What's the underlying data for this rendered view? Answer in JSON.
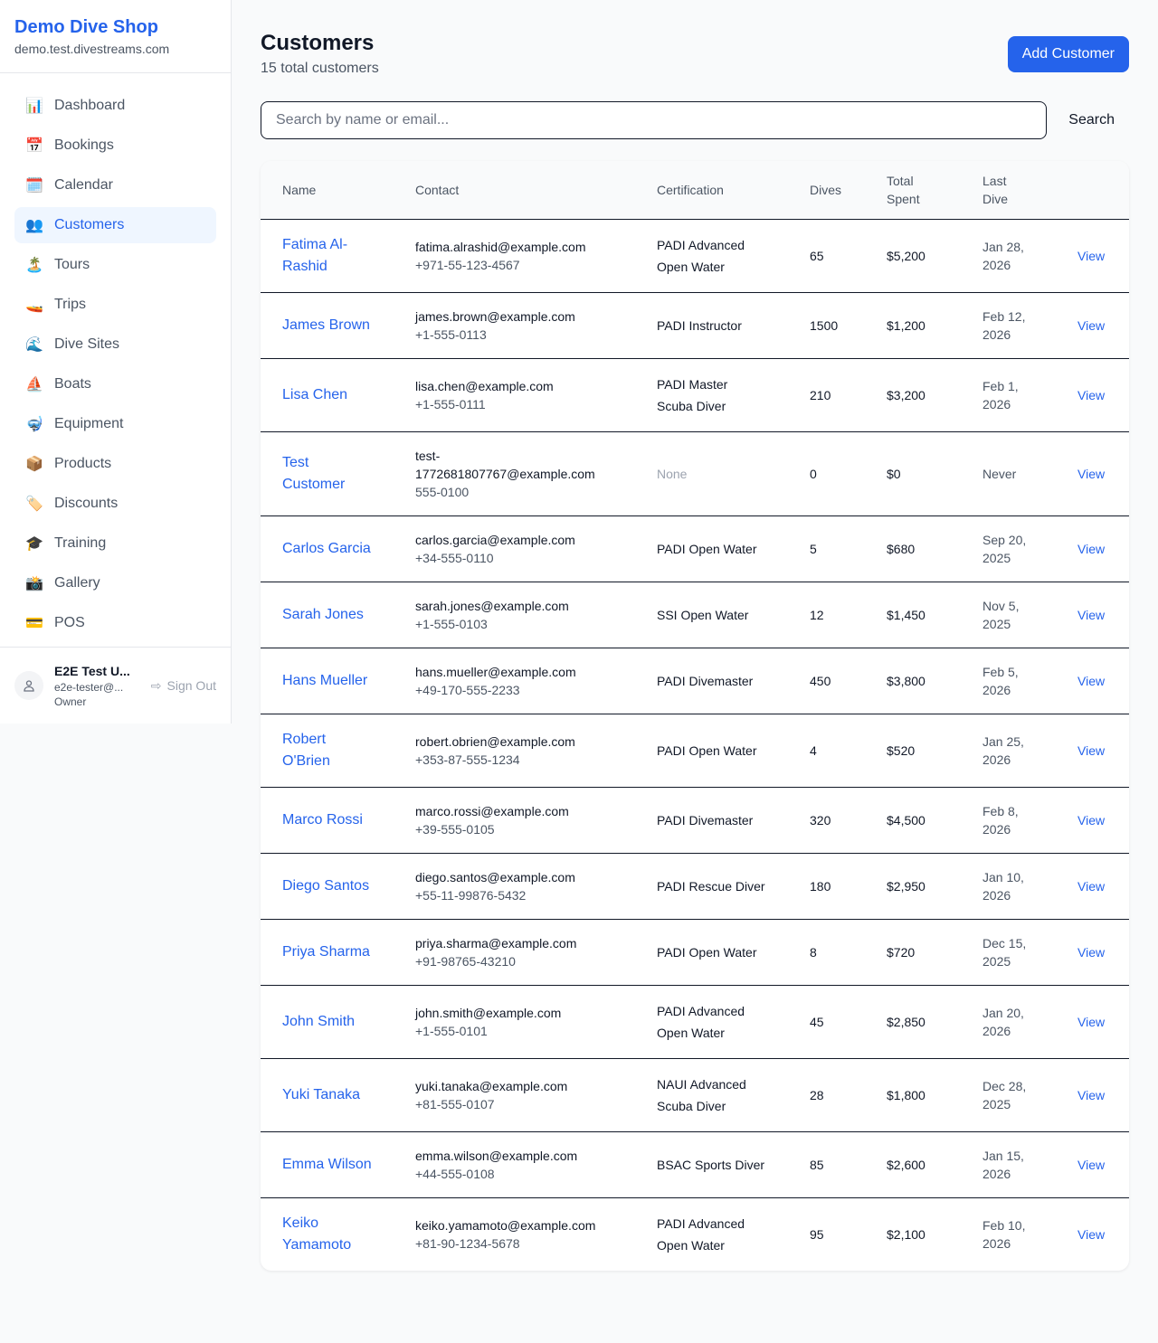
{
  "sidebar": {
    "brand": "Demo Dive Shop",
    "domain": "demo.test.divestreams.com",
    "items": [
      {
        "label": "Dashboard",
        "icon": "📊",
        "active": false
      },
      {
        "label": "Bookings",
        "icon": "📅",
        "active": false
      },
      {
        "label": "Calendar",
        "icon": "🗓️",
        "active": false
      },
      {
        "label": "Customers",
        "icon": "👥",
        "active": true
      },
      {
        "label": "Tours",
        "icon": "🏝️",
        "active": false
      },
      {
        "label": "Trips",
        "icon": "🚤",
        "active": false
      },
      {
        "label": "Dive Sites",
        "icon": "🌊",
        "active": false
      },
      {
        "label": "Boats",
        "icon": "⛵",
        "active": false
      },
      {
        "label": "Equipment",
        "icon": "🤿",
        "active": false
      },
      {
        "label": "Products",
        "icon": "📦",
        "active": false
      },
      {
        "label": "Discounts",
        "icon": "🏷️",
        "active": false
      },
      {
        "label": "Training",
        "icon": "🎓",
        "active": false
      },
      {
        "label": "Gallery",
        "icon": "📸",
        "active": false
      },
      {
        "label": "POS",
        "icon": "💳",
        "active": false
      }
    ],
    "user": {
      "name": "E2E Test U...",
      "email": "e2e-tester@...",
      "role": "Owner",
      "signout": "Sign Out"
    }
  },
  "header": {
    "title": "Customers",
    "subtitle": "15 total customers",
    "add_label": "Add Customer"
  },
  "search": {
    "placeholder": "Search by name or email...",
    "button": "Search"
  },
  "table": {
    "headers": {
      "name": "Name",
      "contact": "Contact",
      "certification": "Certification",
      "dives": "Dives",
      "total": "Total Spent",
      "last": "Last Dive"
    },
    "view_label": "View",
    "rows": [
      {
        "name": "Fatima Al-Rashid",
        "email": "fatima.alrashid@example.com",
        "phone": "+971-55-123-4567",
        "cert": "PADI Advanced Open Water",
        "dives": "65",
        "spent": "$5,200",
        "last": "Jan 28, 2026"
      },
      {
        "name": "James Brown",
        "email": "james.brown@example.com",
        "phone": "+1-555-0113",
        "cert": "PADI Instructor",
        "dives": "1500",
        "spent": "$1,200",
        "last": "Feb 12, 2026"
      },
      {
        "name": "Lisa Chen",
        "email": "lisa.chen@example.com",
        "phone": "+1-555-0111",
        "cert": "PADI Master Scuba Diver",
        "dives": "210",
        "spent": "$3,200",
        "last": "Feb 1, 2026"
      },
      {
        "name": "Test Customer",
        "email": "test-1772681807767@example.com",
        "phone": "555-0100",
        "cert": "None",
        "dives": "0",
        "spent": "$0",
        "last": "Never"
      },
      {
        "name": "Carlos Garcia",
        "email": "carlos.garcia@example.com",
        "phone": "+34-555-0110",
        "cert": "PADI Open Water",
        "dives": "5",
        "spent": "$680",
        "last": "Sep 20, 2025"
      },
      {
        "name": "Sarah Jones",
        "email": "sarah.jones@example.com",
        "phone": "+1-555-0103",
        "cert": "SSI Open Water",
        "dives": "12",
        "spent": "$1,450",
        "last": "Nov 5, 2025"
      },
      {
        "name": "Hans Mueller",
        "email": "hans.mueller@example.com",
        "phone": "+49-170-555-2233",
        "cert": "PADI Divemaster",
        "dives": "450",
        "spent": "$3,800",
        "last": "Feb 5, 2026"
      },
      {
        "name": "Robert O'Brien",
        "email": "robert.obrien@example.com",
        "phone": "+353-87-555-1234",
        "cert": "PADI Open Water",
        "dives": "4",
        "spent": "$520",
        "last": "Jan 25, 2026"
      },
      {
        "name": "Marco Rossi",
        "email": "marco.rossi@example.com",
        "phone": "+39-555-0105",
        "cert": "PADI Divemaster",
        "dives": "320",
        "spent": "$4,500",
        "last": "Feb 8, 2026"
      },
      {
        "name": "Diego Santos",
        "email": "diego.santos@example.com",
        "phone": "+55-11-99876-5432",
        "cert": "PADI Rescue Diver",
        "dives": "180",
        "spent": "$2,950",
        "last": "Jan 10, 2026"
      },
      {
        "name": "Priya Sharma",
        "email": "priya.sharma@example.com",
        "phone": "+91-98765-43210",
        "cert": "PADI Open Water",
        "dives": "8",
        "spent": "$720",
        "last": "Dec 15, 2025"
      },
      {
        "name": "John Smith",
        "email": "john.smith@example.com",
        "phone": "+1-555-0101",
        "cert": "PADI Advanced Open Water",
        "dives": "45",
        "spent": "$2,850",
        "last": "Jan 20, 2026"
      },
      {
        "name": "Yuki Tanaka",
        "email": "yuki.tanaka@example.com",
        "phone": "+81-555-0107",
        "cert": "NAUI Advanced Scuba Diver",
        "dives": "28",
        "spent": "$1,800",
        "last": "Dec 28, 2025"
      },
      {
        "name": "Emma Wilson",
        "email": "emma.wilson@example.com",
        "phone": "+44-555-0108",
        "cert": "BSAC Sports Diver",
        "dives": "85",
        "spent": "$2,600",
        "last": "Jan 15, 2026"
      },
      {
        "name": "Keiko Yamamoto",
        "email": "keiko.yamamoto@example.com",
        "phone": "+81-90-1234-5678",
        "cert": "PADI Advanced Open Water",
        "dives": "95",
        "spent": "$2,100",
        "last": "Feb 10, 2026"
      }
    ]
  }
}
